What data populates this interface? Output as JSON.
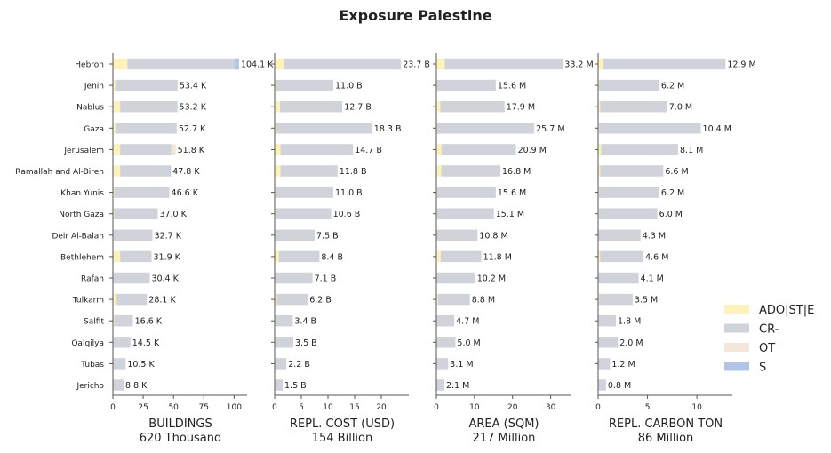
{
  "chart_data": {
    "type": "bar",
    "title": "Exposure Palestine",
    "categories": [
      "Hebron",
      "Jenin",
      "Nablus",
      "Gaza",
      "Jerusalem",
      "Ramallah and Al-Bireh",
      "Khan Yunis",
      "North Gaza",
      "Deir Al-Balah",
      "Bethlehem",
      "Rafah",
      "Tulkarm",
      "Salfit",
      "Qalqilya",
      "Tubas",
      "Jericho"
    ],
    "legend": {
      "placement": "right",
      "entries": [
        {
          "name": "ADO|ST|E",
          "color": "#fdf3b8"
        },
        {
          "name": "CR-",
          "color": "#d0d3da"
        },
        {
          "name": "OT",
          "color": "#f1e6d8"
        },
        {
          "name": "S",
          "color": "#b1c4e6"
        }
      ]
    },
    "panels": [
      {
        "xlabel": "BUILDINGS",
        "subtitle": "620 Thousand",
        "xlim": [
          0,
          110
        ],
        "ticks": [
          0,
          25,
          50,
          75,
          100
        ],
        "tick_labels": [
          "0",
          "25",
          "50",
          "75",
          "100"
        ],
        "series": [
          {
            "name": "ADO|ST|E",
            "values": [
              12,
              2,
              6,
              2,
              6,
              6,
              1,
              1,
              0.5,
              6,
              0.5,
              3,
              1,
              0.5,
              0.5,
              0.3
            ]
          },
          {
            "name": "CR-",
            "values": [
              88,
              51.4,
              46.7,
              50.7,
              42,
              41.3,
              45.6,
              36,
              32.2,
              25.9,
              29.9,
              25.1,
              15.6,
              14,
              10,
              8.5
            ]
          },
          {
            "name": "OT",
            "values": [
              0.1,
              0,
              0,
              0,
              3.8,
              0,
              0,
              0,
              0,
              0,
              0,
              0,
              0,
              0,
              0,
              0
            ]
          },
          {
            "name": "S",
            "values": [
              4,
              0,
              0.5,
              0,
              0,
              0.5,
              0,
              0,
              0,
              0,
              0,
              0,
              0,
              0,
              0,
              0
            ]
          }
        ],
        "labels": [
          "104.1 K",
          "53.4 K",
          "53.2 K",
          "52.7 K",
          "51.8 K",
          "47.8 K",
          "46.6 K",
          "37.0 K",
          "32.7 K",
          "31.9 K",
          "30.4 K",
          "28.1 K",
          "16.6 K",
          "14.5 K",
          "10.5 K",
          "8.8 K"
        ]
      },
      {
        "xlabel": "REPL. COST (USD)",
        "subtitle": "154 Billion",
        "xlim": [
          0,
          25
        ],
        "ticks": [
          0,
          5,
          10,
          15,
          20
        ],
        "tick_labels": [
          "0",
          "5",
          "10",
          "15",
          "20"
        ],
        "series": [
          {
            "name": "ADO|ST|E",
            "values": [
              1.8,
              0.3,
              1,
              0.3,
              1.1,
              1.1,
              0.2,
              0.2,
              0.1,
              0.8,
              0.1,
              0.4,
              0.1,
              0.1,
              0.1,
              0.1
            ]
          },
          {
            "name": "CR-",
            "values": [
              21.9,
              10.7,
              11.7,
              18,
              13.6,
              10.7,
              10.8,
              10.4,
              7.4,
              7.6,
              7,
              5.8,
              3.3,
              3.4,
              2.1,
              1.4
            ]
          },
          {
            "name": "OT",
            "values": [
              0,
              0,
              0,
              0,
              0,
              0,
              0,
              0,
              0,
              0,
              0,
              0,
              0,
              0,
              0,
              0
            ]
          },
          {
            "name": "S",
            "values": [
              0,
              0,
              0,
              0,
              0,
              0,
              0,
              0,
              0,
              0,
              0,
              0,
              0,
              0,
              0,
              0
            ]
          }
        ],
        "labels": [
          "23.7 B",
          "11.0 B",
          "12.7 B",
          "18.3 B",
          "14.7 B",
          "11.8 B",
          "11.0 B",
          "10.6 B",
          "7.5 B",
          "8.4 B",
          "7.1 B",
          "6.2 B",
          "3.4 B",
          "3.5 B",
          "2.2 B",
          "1.5 B"
        ]
      },
      {
        "xlabel": "AREA (SQM)",
        "subtitle": "217 Million",
        "xlim": [
          0,
          35
        ],
        "ticks": [
          0,
          10,
          20,
          30
        ],
        "tick_labels": [
          "0",
          "10",
          "20",
          "30"
        ],
        "series": [
          {
            "name": "ADO|ST|E",
            "values": [
              2.2,
              0.2,
              1,
              0.2,
              1.3,
              1.3,
              0.2,
              0.2,
              0.1,
              1.1,
              0.1,
              0.4,
              0.1,
              0.1,
              0.1,
              0.1
            ]
          },
          {
            "name": "CR-",
            "values": [
              31,
              15.4,
              16.9,
              25.5,
              19.6,
              15.5,
              15.4,
              14.9,
              10.7,
              10.7,
              10.1,
              8.4,
              4.6,
              4.9,
              3,
              2
            ]
          },
          {
            "name": "OT",
            "values": [
              0,
              0,
              0,
              0,
              0,
              0,
              0,
              0,
              0,
              0,
              0,
              0,
              0,
              0,
              0,
              0
            ]
          },
          {
            "name": "S",
            "values": [
              0,
              0,
              0,
              0,
              0,
              0,
              0,
              0,
              0,
              0,
              0,
              0,
              0,
              0,
              0,
              0
            ]
          }
        ],
        "labels": [
          "33.2 M",
          "15.6 M",
          "17.9 M",
          "25.7 M",
          "20.9 M",
          "16.8 M",
          "15.6 M",
          "15.1 M",
          "10.8 M",
          "11.8 M",
          "10.2 M",
          "8.8 M",
          "4.7 M",
          "5.0 M",
          "3.1 M",
          "2.1 M"
        ]
      },
      {
        "xlabel": "REPL. CARBON TON",
        "subtitle": "86 Million",
        "xlim": [
          0,
          13.5
        ],
        "ticks": [
          0,
          5,
          10
        ],
        "tick_labels": [
          "0",
          "5",
          "10"
        ],
        "series": [
          {
            "name": "ADO|ST|E",
            "values": [
              0.5,
              0.1,
              0.2,
              0.1,
              0.3,
              0.2,
              0.1,
              0.1,
              0.05,
              0.2,
              0.05,
              0.1,
              0.05,
              0.05,
              0.05,
              0.05
            ]
          },
          {
            "name": "CR-",
            "values": [
              12.4,
              6.1,
              6.8,
              10.3,
              7.8,
              6.4,
              6.1,
              5.9,
              4.25,
              4.4,
              4.05,
              3.4,
              1.75,
              1.95,
              1.15,
              0.75
            ]
          },
          {
            "name": "OT",
            "values": [
              0,
              0,
              0,
              0,
              0,
              0,
              0,
              0,
              0,
              0,
              0,
              0,
              0,
              0,
              0,
              0
            ]
          },
          {
            "name": "S",
            "values": [
              0,
              0,
              0,
              0,
              0,
              0,
              0,
              0,
              0,
              0,
              0,
              0,
              0,
              0,
              0,
              0
            ]
          }
        ],
        "labels": [
          "12.9 M",
          "6.2 M",
          "7.0 M",
          "10.4 M",
          "8.1 M",
          "6.6 M",
          "6.2 M",
          "6.0 M",
          "4.3 M",
          "4.6 M",
          "4.1 M",
          "3.5 M",
          "1.8 M",
          "2.0 M",
          "1.2 M",
          "0.8 M"
        ]
      }
    ]
  }
}
